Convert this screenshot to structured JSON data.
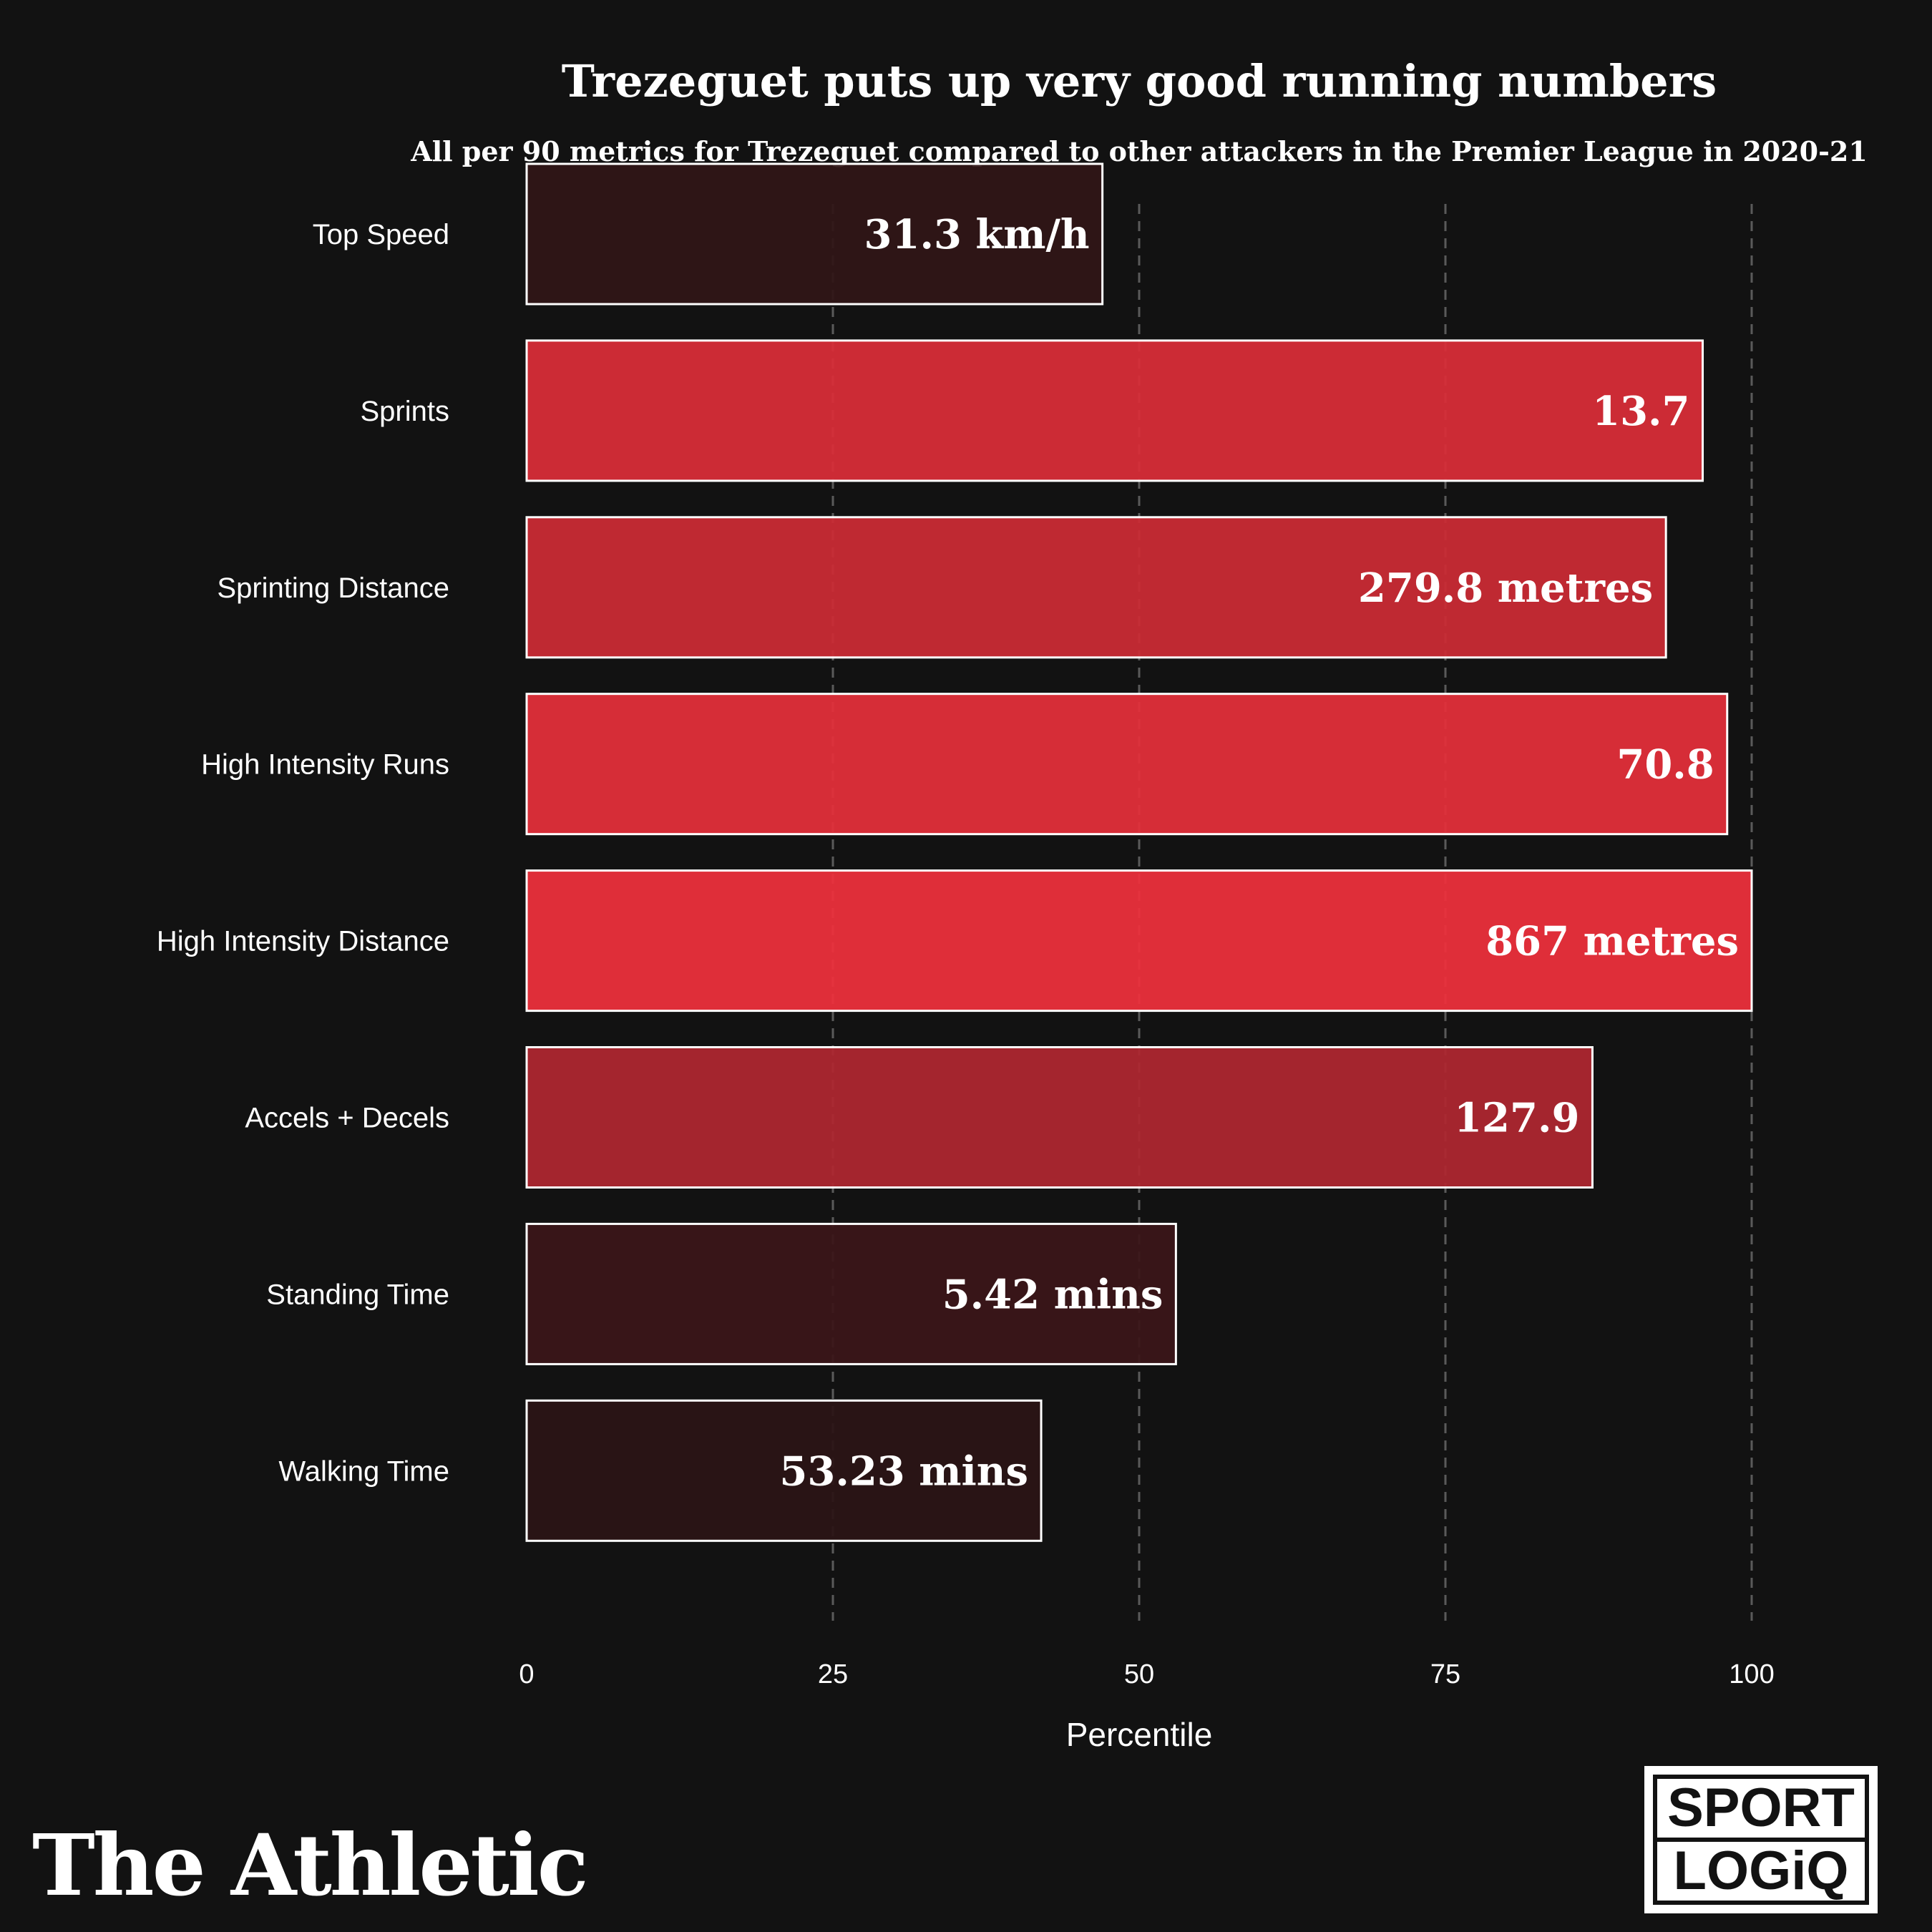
{
  "chart_data": {
    "type": "bar",
    "orientation": "horizontal",
    "title": "Trezeguet puts up very good running numbers",
    "subtitle": "All per 90 metrics for Trezeguet compared to other attackers in the Premier League in 2020-21",
    "xlabel": "Percentile",
    "ylabel": "",
    "xlim": [
      0,
      100
    ],
    "xticks": [
      0,
      25,
      50,
      75,
      100
    ],
    "xtick_labels": [
      "0",
      "25",
      "50",
      "75",
      "100"
    ],
    "grid": "vertical dashed at 25, 50, 75, 100",
    "categories": [
      "Top Speed",
      "Sprints",
      "Sprinting Distance",
      "High Intensity Runs",
      "High Intensity Distance",
      "Accels + Decels",
      "Standing Time",
      "Walking Time"
    ],
    "values": [
      47,
      96,
      93,
      98,
      100,
      87,
      53,
      42
    ],
    "value_labels": [
      "31.3 km/h",
      "13.7",
      "279.8 metres",
      "70.8",
      "867 metres",
      "127.9",
      "5.42 mins",
      "53.23 mins"
    ],
    "colors": {
      "background": "#121212",
      "bar_low": "#2a1416",
      "bar_high": "#ef303c",
      "bar_border": "#ffffff",
      "grid": "#5a5a5a",
      "text": "#ffffff"
    }
  },
  "branding": {
    "publisher": "The Athletic",
    "partner_line1": "SPORT",
    "partner_line2": "LOGiQ"
  }
}
